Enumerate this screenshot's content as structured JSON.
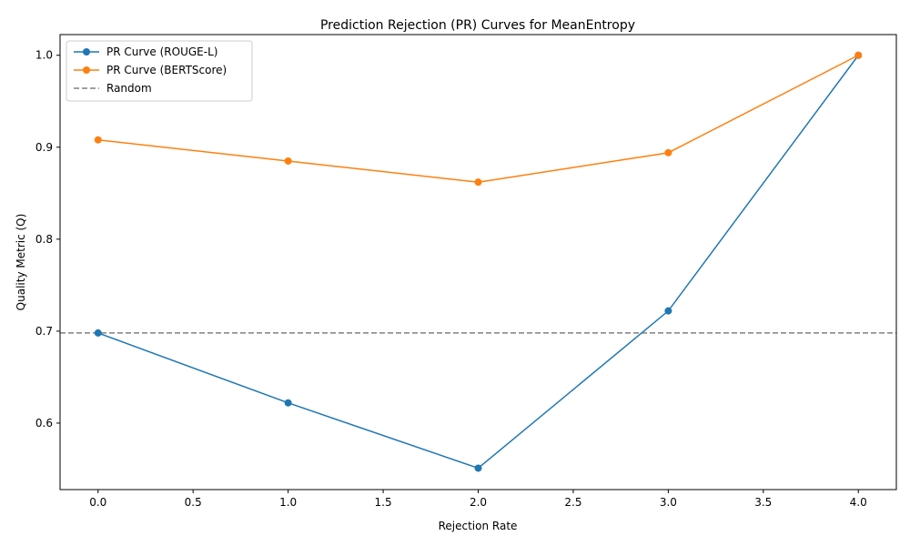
{
  "chart_data": {
    "type": "line",
    "title": "Prediction Rejection (PR) Curves for MeanEntropy",
    "xlabel": "Rejection Rate",
    "ylabel": "Quality Metric (Q)",
    "x": [
      0,
      1,
      2,
      3,
      4
    ],
    "xlim": [
      -0.2,
      4.2
    ],
    "ylim": [
      0.5277,
      1.0225
    ],
    "xticks": [
      0.0,
      0.5,
      1.0,
      1.5,
      2.0,
      2.5,
      3.0,
      3.5,
      4.0
    ],
    "xtick_labels": [
      "0.0",
      "0.5",
      "1.0",
      "1.5",
      "2.0",
      "2.5",
      "3.0",
      "3.5",
      "4.0"
    ],
    "yticks": [
      0.6,
      0.7,
      0.8,
      0.9,
      1.0
    ],
    "ytick_labels": [
      "0.6",
      "0.7",
      "0.8",
      "0.9",
      "1.0"
    ],
    "grid": false,
    "legend_position": "top-left",
    "series": [
      {
        "name": "PR Curve (ROUGE-L)",
        "color": "#1f77b4",
        "marker": "circle",
        "values": [
          0.698,
          0.622,
          0.551,
          0.722,
          1.0
        ]
      },
      {
        "name": "PR Curve (BERTScore)",
        "color": "#ff7f0e",
        "marker": "circle",
        "values": [
          0.908,
          0.885,
          0.862,
          0.894,
          1.0
        ]
      }
    ],
    "reference_line": {
      "name": "Random",
      "y": 0.698,
      "color": "#808080",
      "style": "dashed"
    }
  }
}
